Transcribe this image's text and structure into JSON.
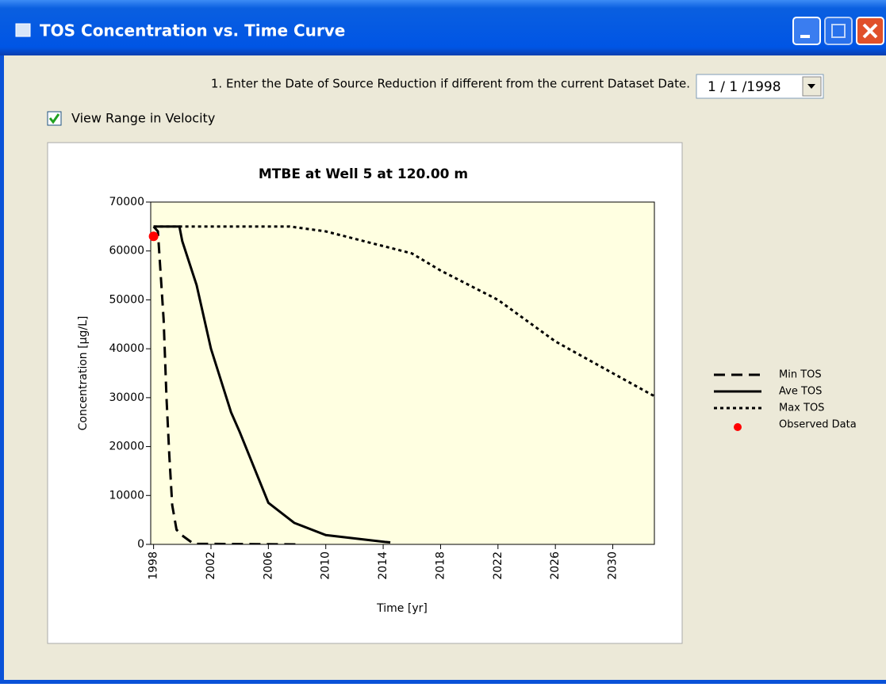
{
  "window": {
    "title": "TOS Concentration vs. Time Curve"
  },
  "form": {
    "prompt": "1. Enter the Date of Source Reduction if different from the current Dataset Date.",
    "date_value": "1 / 1 /1998",
    "checkbox": {
      "label": "View Range in Velocity",
      "checked": true
    }
  },
  "chart_data": {
    "type": "line",
    "title": "MTBE at Well 5 at 120.00 m",
    "xlabel": "Time [yr]",
    "ylabel": "Concentration [µg/L]",
    "xlim": [
      1997.8,
      2032.9
    ],
    "ylim": [
      0,
      70000
    ],
    "xticks": [
      1998,
      2002,
      2006,
      2010,
      2014,
      2018,
      2022,
      2026,
      2030
    ],
    "yticks": [
      0,
      10000,
      20000,
      30000,
      40000,
      50000,
      60000,
      70000
    ],
    "background": "#ffffe1",
    "legend": "right",
    "series": [
      {
        "name": "Min TOS",
        "color": "#000000",
        "dash": "long",
        "mode": "line",
        "x": [
          1998,
          1998.3,
          1998.5,
          1998.7,
          1998.9,
          1999.1,
          1999.3,
          1999.6,
          2000,
          2000.8,
          2002,
          2008
        ],
        "values": [
          65000,
          64000,
          55000,
          46000,
          30000,
          18000,
          8000,
          3000,
          1800,
          100,
          100,
          0
        ]
      },
      {
        "name": "Ave TOS",
        "color": "#000000",
        "dash": "solid",
        "mode": "line",
        "x": [
          1998,
          1999.8,
          2000,
          2001,
          2002,
          2003.4,
          2004,
          2006,
          2007.8,
          2010,
          2014.1,
          2014.5
        ],
        "values": [
          65000,
          65000,
          62000,
          53000,
          40000,
          27000,
          23000,
          8500,
          4400,
          1900,
          500,
          400
        ]
      },
      {
        "name": "Max TOS",
        "color": "#000000",
        "dash": "dotted",
        "mode": "line",
        "x": [
          1998,
          2007.5,
          2010,
          2014,
          2016,
          2018,
          2022,
          2026,
          2030,
          2032.9
        ],
        "values": [
          65000,
          65000,
          64000,
          61000,
          59500,
          56000,
          50000,
          41500,
          35000,
          30300
        ]
      },
      {
        "name": "Observed Data",
        "color": "#ff0000",
        "dash": "none",
        "mode": "markers",
        "x": [
          1998
        ],
        "values": [
          63000
        ]
      }
    ]
  }
}
